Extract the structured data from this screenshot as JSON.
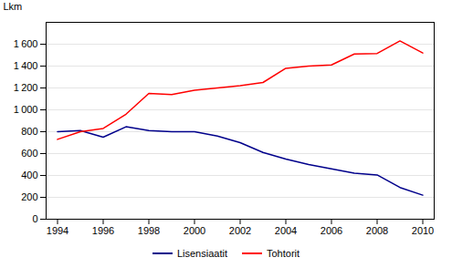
{
  "chart_data": {
    "type": "line",
    "x": [
      1994,
      1995,
      1996,
      1997,
      1998,
      1999,
      2000,
      2001,
      2002,
      2003,
      2004,
      2005,
      2006,
      2007,
      2008,
      2009,
      2010
    ],
    "series": [
      {
        "name": "Lisensiaatit",
        "color": "#00008B",
        "values": [
          800,
          810,
          750,
          845,
          810,
          800,
          800,
          760,
          700,
          610,
          550,
          500,
          460,
          420,
          405,
          290,
          220
        ]
      },
      {
        "name": "Tohtorit",
        "color": "#FF0000",
        "values": [
          730,
          800,
          830,
          960,
          1150,
          1140,
          1180,
          1200,
          1220,
          1250,
          1380,
          1400,
          1410,
          1510,
          1515,
          1630,
          1520
        ]
      }
    ],
    "ylabel": "Lkm",
    "xlim": [
      1993.5,
      2010.5
    ],
    "xticks": [
      1994,
      1996,
      1998,
      2000,
      2002,
      2004,
      2006,
      2008,
      2010
    ],
    "ylim": [
      0,
      1800
    ],
    "yticks": [
      0,
      200,
      400,
      600,
      800,
      {
        "value": 1000,
        "label": "1 000"
      },
      {
        "value": 1200,
        "label": "1 200"
      },
      {
        "value": 1400,
        "label": "1 400"
      },
      {
        "value": 1600,
        "label": "1 600"
      }
    ],
    "grid": true,
    "legend": "bottom"
  }
}
